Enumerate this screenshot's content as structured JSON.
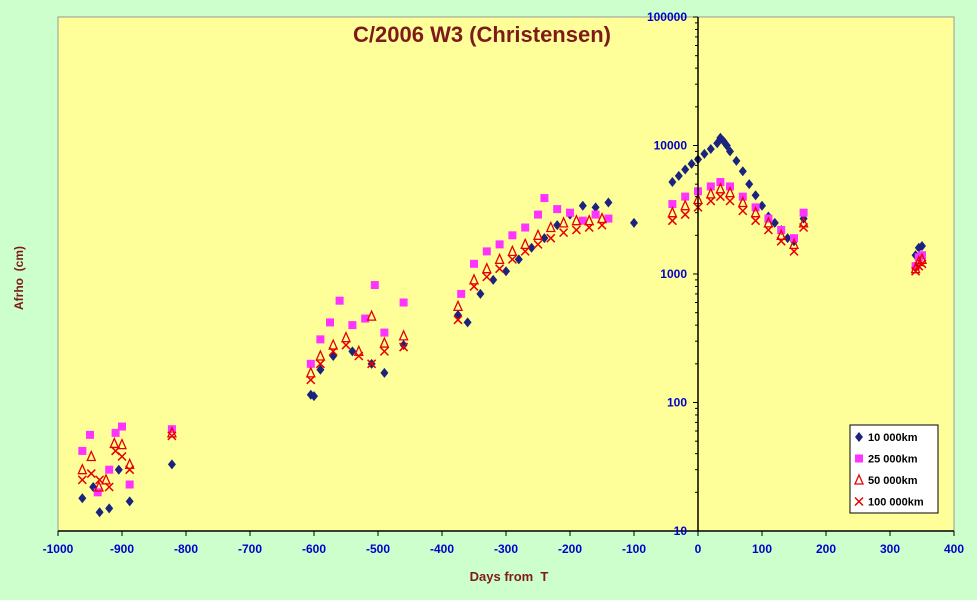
{
  "chart_data": {
    "type": "scatter",
    "title": "C/2006 W3 (Christensen)",
    "xlabel": "Days from  T",
    "ylabel": "Afrho  (cm)",
    "x_axis": {
      "min": -1000,
      "max": 400,
      "ticks": [
        "-1000",
        "-900",
        "-800",
        "-700",
        "-600",
        "-500",
        "-400",
        "-300",
        "-200",
        "-100",
        "0",
        "100",
        "200",
        "300",
        "400"
      ]
    },
    "y_axis": {
      "scale": "log",
      "min": 10,
      "max": 100000,
      "ticks": [
        "10",
        "100",
        "1000",
        "10000",
        "100000"
      ],
      "crosses_x_at": 0
    },
    "legend": {
      "position": "bottom-right"
    },
    "colors": {
      "page_bg": "#ccffcc",
      "plot_bg": "#ffff99",
      "title": "#7f1a1a",
      "axis_label": "#7f1a1a",
      "tick_label": "#0000cc"
    },
    "series": [
      {
        "name": "10 000km",
        "marker": "diamond",
        "color": "#1a237e",
        "points": [
          [
            -962,
            18
          ],
          [
            -945,
            22
          ],
          [
            -935,
            14
          ],
          [
            -920,
            15
          ],
          [
            -905,
            30
          ],
          [
            -888,
            17
          ],
          [
            -822,
            33
          ],
          [
            -605,
            115
          ],
          [
            -600,
            112
          ],
          [
            -590,
            180
          ],
          [
            -570,
            230
          ],
          [
            -540,
            250
          ],
          [
            -510,
            200
          ],
          [
            -490,
            170
          ],
          [
            -460,
            280
          ],
          [
            -375,
            480
          ],
          [
            -360,
            420
          ],
          [
            -340,
            700
          ],
          [
            -320,
            900
          ],
          [
            -300,
            1050
          ],
          [
            -280,
            1300
          ],
          [
            -260,
            1600
          ],
          [
            -240,
            1900
          ],
          [
            -220,
            2400
          ],
          [
            -200,
            2900
          ],
          [
            -180,
            3400
          ],
          [
            -160,
            3300
          ],
          [
            -140,
            3600
          ],
          [
            -100,
            2500
          ],
          [
            -40,
            5200
          ],
          [
            -30,
            5800
          ],
          [
            -20,
            6500
          ],
          [
            -10,
            7200
          ],
          [
            0,
            7800
          ],
          [
            10,
            8600
          ],
          [
            20,
            9400
          ],
          [
            30,
            10400
          ],
          [
            35,
            11500
          ],
          [
            40,
            10800
          ],
          [
            45,
            10000
          ],
          [
            50,
            9000
          ],
          [
            60,
            7600
          ],
          [
            70,
            6300
          ],
          [
            80,
            5000
          ],
          [
            90,
            4100
          ],
          [
            100,
            3400
          ],
          [
            110,
            2800
          ],
          [
            120,
            2500
          ],
          [
            130,
            2200
          ],
          [
            140,
            1900
          ],
          [
            150,
            1800
          ],
          [
            165,
            2700
          ],
          [
            340,
            1400
          ],
          [
            345,
            1600
          ],
          [
            350,
            1650
          ]
        ]
      },
      {
        "name": "25 000km",
        "marker": "square",
        "color": "#ff33ff",
        "points": [
          [
            -962,
            42
          ],
          [
            -950,
            56
          ],
          [
            -938,
            20
          ],
          [
            -920,
            30
          ],
          [
            -910,
            58
          ],
          [
            -900,
            65
          ],
          [
            -888,
            23
          ],
          [
            -822,
            62
          ],
          [
            -605,
            200
          ],
          [
            -590,
            310
          ],
          [
            -575,
            420
          ],
          [
            -560,
            620
          ],
          [
            -540,
            400
          ],
          [
            -520,
            450
          ],
          [
            -505,
            820
          ],
          [
            -490,
            350
          ],
          [
            -460,
            600
          ],
          [
            -370,
            700
          ],
          [
            -350,
            1200
          ],
          [
            -330,
            1500
          ],
          [
            -310,
            1700
          ],
          [
            -290,
            2000
          ],
          [
            -270,
            2300
          ],
          [
            -250,
            2900
          ],
          [
            -240,
            3900
          ],
          [
            -220,
            3200
          ],
          [
            -200,
            3000
          ],
          [
            -180,
            2600
          ],
          [
            -160,
            2900
          ],
          [
            -140,
            2700
          ],
          [
            -40,
            3500
          ],
          [
            -20,
            4000
          ],
          [
            0,
            4400
          ],
          [
            20,
            4800
          ],
          [
            35,
            5200
          ],
          [
            50,
            4800
          ],
          [
            70,
            4000
          ],
          [
            90,
            3300
          ],
          [
            110,
            2700
          ],
          [
            130,
            2200
          ],
          [
            150,
            1900
          ],
          [
            165,
            3000
          ],
          [
            340,
            1150
          ],
          [
            345,
            1350
          ],
          [
            350,
            1400
          ]
        ]
      },
      {
        "name": "50 000km",
        "marker": "triangle",
        "color": "#e60000",
        "points": [
          [
            -962,
            30
          ],
          [
            -948,
            38
          ],
          [
            -936,
            22
          ],
          [
            -925,
            25
          ],
          [
            -912,
            48
          ],
          [
            -900,
            47
          ],
          [
            -888,
            33
          ],
          [
            -822,
            58
          ],
          [
            -605,
            170
          ],
          [
            -590,
            230
          ],
          [
            -570,
            280
          ],
          [
            -550,
            320
          ],
          [
            -530,
            250
          ],
          [
            -510,
            470
          ],
          [
            -490,
            290
          ],
          [
            -460,
            330
          ],
          [
            -375,
            560
          ],
          [
            -350,
            900
          ],
          [
            -330,
            1100
          ],
          [
            -310,
            1300
          ],
          [
            -290,
            1500
          ],
          [
            -270,
            1700
          ],
          [
            -250,
            2000
          ],
          [
            -230,
            2300
          ],
          [
            -210,
            2500
          ],
          [
            -190,
            2600
          ],
          [
            -170,
            2600
          ],
          [
            -150,
            2700
          ],
          [
            -40,
            3000
          ],
          [
            -20,
            3400
          ],
          [
            0,
            3800
          ],
          [
            20,
            4200
          ],
          [
            35,
            4600
          ],
          [
            50,
            4300
          ],
          [
            70,
            3600
          ],
          [
            90,
            3000
          ],
          [
            110,
            2500
          ],
          [
            130,
            2000
          ],
          [
            150,
            1700
          ],
          [
            165,
            2500
          ],
          [
            340,
            1100
          ],
          [
            345,
            1250
          ],
          [
            350,
            1300
          ]
        ]
      },
      {
        "name": "100 000km",
        "marker": "x",
        "color": "#e60000",
        "points": [
          [
            -962,
            25
          ],
          [
            -948,
            28
          ],
          [
            -935,
            25
          ],
          [
            -920,
            22
          ],
          [
            -910,
            42
          ],
          [
            -900,
            38
          ],
          [
            -888,
            30
          ],
          [
            -822,
            55
          ],
          [
            -605,
            150
          ],
          [
            -590,
            200
          ],
          [
            -570,
            250
          ],
          [
            -550,
            280
          ],
          [
            -530,
            230
          ],
          [
            -510,
            200
          ],
          [
            -490,
            250
          ],
          [
            -460,
            270
          ],
          [
            -375,
            440
          ],
          [
            -350,
            800
          ],
          [
            -330,
            950
          ],
          [
            -310,
            1100
          ],
          [
            -290,
            1300
          ],
          [
            -270,
            1500
          ],
          [
            -250,
            1700
          ],
          [
            -230,
            1900
          ],
          [
            -210,
            2100
          ],
          [
            -190,
            2200
          ],
          [
            -170,
            2300
          ],
          [
            -150,
            2400
          ],
          [
            -40,
            2600
          ],
          [
            -20,
            2900
          ],
          [
            0,
            3300
          ],
          [
            20,
            3700
          ],
          [
            35,
            4000
          ],
          [
            50,
            3700
          ],
          [
            70,
            3100
          ],
          [
            90,
            2600
          ],
          [
            110,
            2200
          ],
          [
            130,
            1800
          ],
          [
            150,
            1500
          ],
          [
            165,
            2300
          ],
          [
            340,
            1050
          ],
          [
            345,
            1150
          ],
          [
            350,
            1200
          ]
        ]
      }
    ]
  }
}
